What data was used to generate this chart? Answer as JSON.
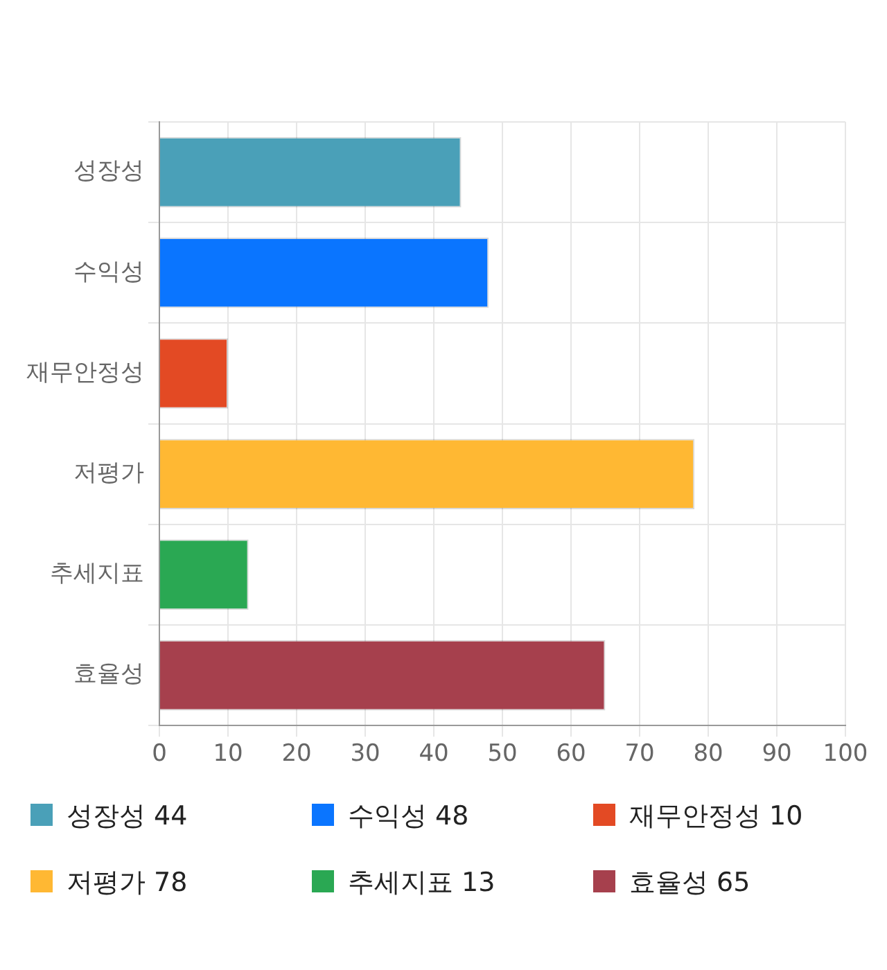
{
  "chart_data": {
    "type": "bar",
    "orientation": "horizontal",
    "stacked": true,
    "categories": [
      "성장성",
      "수익성",
      "재무안정성",
      "저평가",
      "추세지표",
      "효율성"
    ],
    "series": [
      {
        "name": "성장성 44",
        "color": "#4aa0b8",
        "values": [
          44,
          null,
          null,
          null,
          null,
          null
        ]
      },
      {
        "name": "수익성 48",
        "color": "#0a75ff",
        "values": [
          null,
          48,
          null,
          null,
          null,
          null
        ]
      },
      {
        "name": "재무안정성 10",
        "color": "#e34a24",
        "values": [
          null,
          null,
          10,
          null,
          null,
          null
        ]
      },
      {
        "name": "저평가 78",
        "color": "#ffb833",
        "values": [
          null,
          null,
          null,
          78,
          null,
          null
        ]
      },
      {
        "name": "추세지표 13",
        "color": "#2aa853",
        "values": [
          null,
          null,
          null,
          null,
          13,
          null
        ]
      },
      {
        "name": "효율성 65",
        "color": "#a6404d",
        "values": [
          null,
          null,
          null,
          null,
          null,
          65
        ]
      }
    ],
    "xlim": [
      0,
      100
    ],
    "xticks": [
      0,
      10,
      20,
      30,
      40,
      50,
      60,
      70,
      80,
      90,
      100
    ],
    "grid": true,
    "legend": "bottom"
  }
}
